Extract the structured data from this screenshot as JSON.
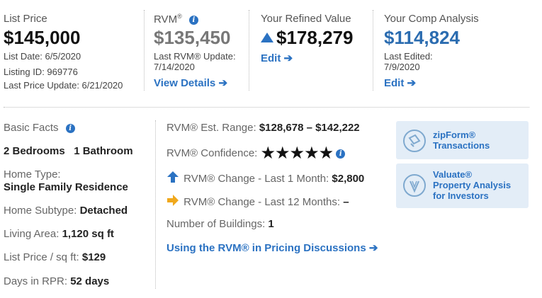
{
  "list_price": {
    "label": "List Price",
    "value": "$145,000",
    "list_date": "List Date: 6/5/2020",
    "listing_id": "Listing ID: 969776",
    "last_update": "Last Price Update: 6/21/2020"
  },
  "rvm": {
    "label": "RVM",
    "reg": "®",
    "value": "$135,450",
    "update_line1": "Last RVM® Update:",
    "update_line2": "7/14/2020",
    "link": "View Details"
  },
  "refined": {
    "label": "Your Refined Value",
    "value": "$178,279",
    "link": "Edit"
  },
  "comp": {
    "label": "Your Comp Analysis",
    "value": "$114,824",
    "edited_line1": "Last Edited:",
    "edited_line2": "7/9/2020",
    "link": "Edit"
  },
  "basic_facts": {
    "title": "Basic Facts",
    "bedrooms": "2 Bedrooms",
    "bathrooms": "1 Bathroom",
    "home_type_label": "Home Type:",
    "home_type_value": "Single Family Residence",
    "subtype_label": "Home Subtype:",
    "subtype_value": "Detached",
    "living_area_label": "Living Area:",
    "living_area_value": "1,120 sq ft",
    "price_sqft_label": "List Price / sq ft:",
    "price_sqft_value": "$129",
    "days_label": "Days in RPR:",
    "days_value": "52 days"
  },
  "rvm_details": {
    "range_label": "RVM® Est. Range:",
    "range_value": "$128,678 – $142,222",
    "confidence_label": "RVM® Confidence:",
    "confidence_stars": 5,
    "change_1m_label": "RVM® Change - Last 1 Month:",
    "change_1m_value": "$2,800",
    "change_12m_label": "RVM® Change - Last 12 Months:",
    "change_12m_value": "–",
    "buildings_label": "Number of Buildings:",
    "buildings_value": "1",
    "pricing_link": "Using the RVM® in Pricing Discussions"
  },
  "cards": {
    "zipform_line1": "zipForm®",
    "zipform_line2": "Transactions",
    "valuate_line1": "Valuate®",
    "valuate_line2": "Property Analysis",
    "valuate_line3": "for Investors"
  },
  "colors": {
    "link": "#2b72c2",
    "rvm_value": "#777777",
    "comp_value": "#2b6cb0",
    "up_arrow": "#2b72c2",
    "flat_arrow": "#f0a81c",
    "card_bg": "#e3edf7"
  },
  "icons": {
    "info": "info-icon",
    "triangle_up": "triangle-up-icon",
    "arrow_right": "arrow-right-icon",
    "arrow_up": "arrow-up-icon",
    "star": "star-icon",
    "zipform": "zipform-icon",
    "valuate": "valuate-icon"
  }
}
